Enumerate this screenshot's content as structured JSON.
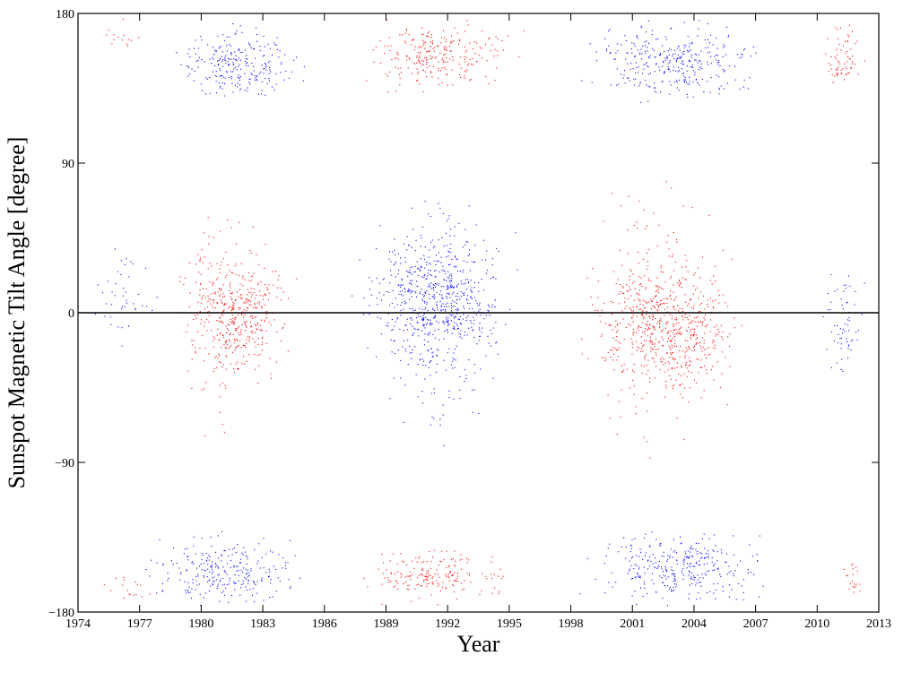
{
  "chart_data": {
    "type": "scatter",
    "title": "",
    "xlabel": "Year",
    "ylabel": "Sunspot Magnetic Tilt Angle [degree]",
    "xlim": [
      1974,
      2013
    ],
    "ylim": [
      -180,
      180
    ],
    "x_ticks": [
      "1974",
      "1977",
      "1980",
      "1983",
      "1986",
      "1989",
      "1992",
      "1995",
      "1998",
      "2001",
      "2004",
      "2007",
      "2010",
      "2013"
    ],
    "x_tick_values": [
      1974,
      1977,
      1980,
      1983,
      1986,
      1989,
      1992,
      1995,
      1998,
      2001,
      2004,
      2007,
      2010,
      2013
    ],
    "y_ticks": [
      "−180",
      "−90",
      "0",
      "90",
      "180"
    ],
    "y_tick_values": [
      -180,
      -90,
      0,
      90,
      180
    ],
    "reference_line_y": 0,
    "grid": false,
    "series": [
      {
        "color": "#ff0000",
        "clusters": [
          {
            "x": [
              1978.5,
              1985.0
            ],
            "y": [
              -45,
              45
            ],
            "density": 1.0
          },
          {
            "x": [
              1978.0,
              1984.5
            ],
            "y": [
              -90,
              90
            ],
            "density": 0.25
          },
          {
            "x": [
              1974.5,
              1978.0
            ],
            "y": [
              155,
              180
            ],
            "density": 0.3
          },
          {
            "x": [
              1974.5,
              1978.0
            ],
            "y": [
              -180,
              -150
            ],
            "density": 0.3
          },
          {
            "x": [
              1987.0,
              1996.0
            ],
            "y": [
              130,
              180
            ],
            "density": 1.0
          },
          {
            "x": [
              1987.0,
              1995.5
            ],
            "y": [
              -180,
              -135
            ],
            "density": 0.9
          },
          {
            "x": [
              1998.0,
              2007.0
            ],
            "y": [
              -60,
              40
            ],
            "density": 1.0
          },
          {
            "x": [
              1998.0,
              2006.5
            ],
            "y": [
              -100,
              100
            ],
            "density": 0.25
          },
          {
            "x": [
              2010.0,
              2012.5
            ],
            "y": [
              125,
              180
            ],
            "density": 0.9
          },
          {
            "x": [
              2011.0,
              2012.5
            ],
            "y": [
              -180,
              -145
            ],
            "density": 0.7
          }
        ]
      },
      {
        "color": "#0000ff",
        "clusters": [
          {
            "x": [
              1978.0,
              1985.5
            ],
            "y": [
              120,
              180
            ],
            "density": 1.0
          },
          {
            "x": [
              1976.5,
              1986.0
            ],
            "y": [
              -180,
              -130
            ],
            "density": 1.0
          },
          {
            "x": [
              1974.5,
              1978.0
            ],
            "y": [
              -30,
              45
            ],
            "density": 0.3
          },
          {
            "x": [
              1987.0,
              1996.0
            ],
            "y": [
              -45,
              65
            ],
            "density": 1.0
          },
          {
            "x": [
              1988.0,
              1995.0
            ],
            "y": [
              -100,
              100
            ],
            "density": 0.25
          },
          {
            "x": [
              1998.0,
              2008.0
            ],
            "y": [
              120,
              180
            ],
            "density": 1.0
          },
          {
            "x": [
              1998.0,
              2008.5
            ],
            "y": [
              -180,
              -125
            ],
            "density": 1.0
          },
          {
            "x": [
              2010.0,
              2012.7
            ],
            "y": [
              -50,
              35
            ],
            "density": 0.5
          }
        ]
      }
    ]
  }
}
